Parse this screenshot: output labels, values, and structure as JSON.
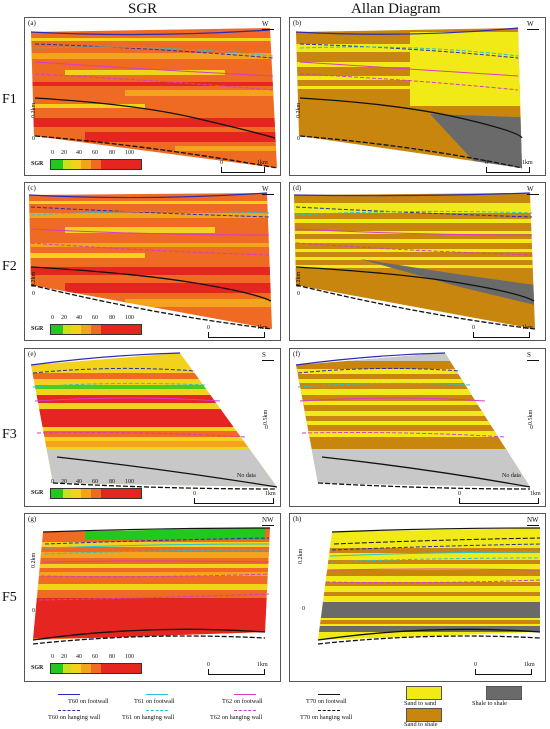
{
  "columns": {
    "left": "SGR",
    "right": "Allan Diagram"
  },
  "rows": [
    "F1",
    "F2",
    "F3",
    "F5"
  ],
  "panels": {
    "a": {
      "label": "(a)",
      "dir": "W",
      "vscale": "0.2km",
      "vzero": "0",
      "hzero": "0",
      "hend": "1km"
    },
    "b": {
      "label": "(b)",
      "dir": "W",
      "vscale": "0.2km",
      "vzero": "0",
      "hzero": "0",
      "hend": "1km"
    },
    "c": {
      "label": "(c)",
      "dir": "W",
      "vscale": "0.2km",
      "vzero": "0",
      "hzero": "0",
      "hend": "1km"
    },
    "d": {
      "label": "(d)",
      "dir": "W",
      "vscale": "0.2km",
      "vzero": "0",
      "hzero": "0",
      "hend": "1km"
    },
    "e": {
      "label": "(e)",
      "dir": "S",
      "vscale": "0.5km",
      "vzero": "0",
      "hzero": "0",
      "hend": "1km",
      "nodata": "No data"
    },
    "f": {
      "label": "(f)",
      "dir": "S",
      "vscale": "0.5km",
      "vzero": "0",
      "hzero": "0",
      "hend": "1km",
      "nodata": "No data"
    },
    "g": {
      "label": "(g)",
      "dir": "NW",
      "vscale": "0.2km",
      "vzero": "0",
      "hzero": "0",
      "hend": "1km"
    },
    "h": {
      "label": "(h)",
      "dir": "NW",
      "vscale": "0.2km",
      "vzero": "0",
      "hzero": "0",
      "hend": "1km"
    }
  },
  "sgr_scale": {
    "label": "SGR",
    "ticks": [
      "0",
      "20",
      "40",
      "60",
      "80",
      "100"
    ],
    "colors": [
      "#22c81e",
      "#c9e01c",
      "#f2d21a",
      "#f4a31c",
      "#ef6a22",
      "#e52620"
    ]
  },
  "legend": {
    "lines": [
      {
        "label": "T60 on footwall",
        "color": "#2b2bb3",
        "dashed": false
      },
      {
        "label": "T60 on hanging wall",
        "color": "#2b2bb3",
        "dashed": true
      },
      {
        "label": "T61 on footwall",
        "color": "#22c4d8",
        "dashed": false
      },
      {
        "label": "T61 on hanging wall",
        "color": "#22c4d8",
        "dashed": true
      },
      {
        "label": "T62 on footwall",
        "color": "#d63cc8",
        "dashed": false
      },
      {
        "label": "T62 on hanging wall",
        "color": "#d63cc8",
        "dashed": true
      },
      {
        "label": "T70 on footwall",
        "color": "#111111",
        "dashed": false
      },
      {
        "label": "T70 on hanging wall",
        "color": "#111111",
        "dashed": true
      }
    ],
    "swatches": [
      {
        "label": "Sand to sand",
        "color": "#f2ea16"
      },
      {
        "label": "Shale to shale",
        "color": "#6a6a6a"
      },
      {
        "label": "Sand to shale",
        "color": "#c8860e"
      }
    ]
  },
  "colors": {
    "sgr_base": "#ef6a22",
    "sgr_hi": "#e52620",
    "sgr_lo": "#f4a31c",
    "sgr_sand": "#f2d21a",
    "sgr_green": "#22c81e",
    "nodata": "#c8c8c8",
    "allan_brown": "#c8860e",
    "allan_yellow": "#f2ea16",
    "allan_gray": "#6a6a6a"
  }
}
